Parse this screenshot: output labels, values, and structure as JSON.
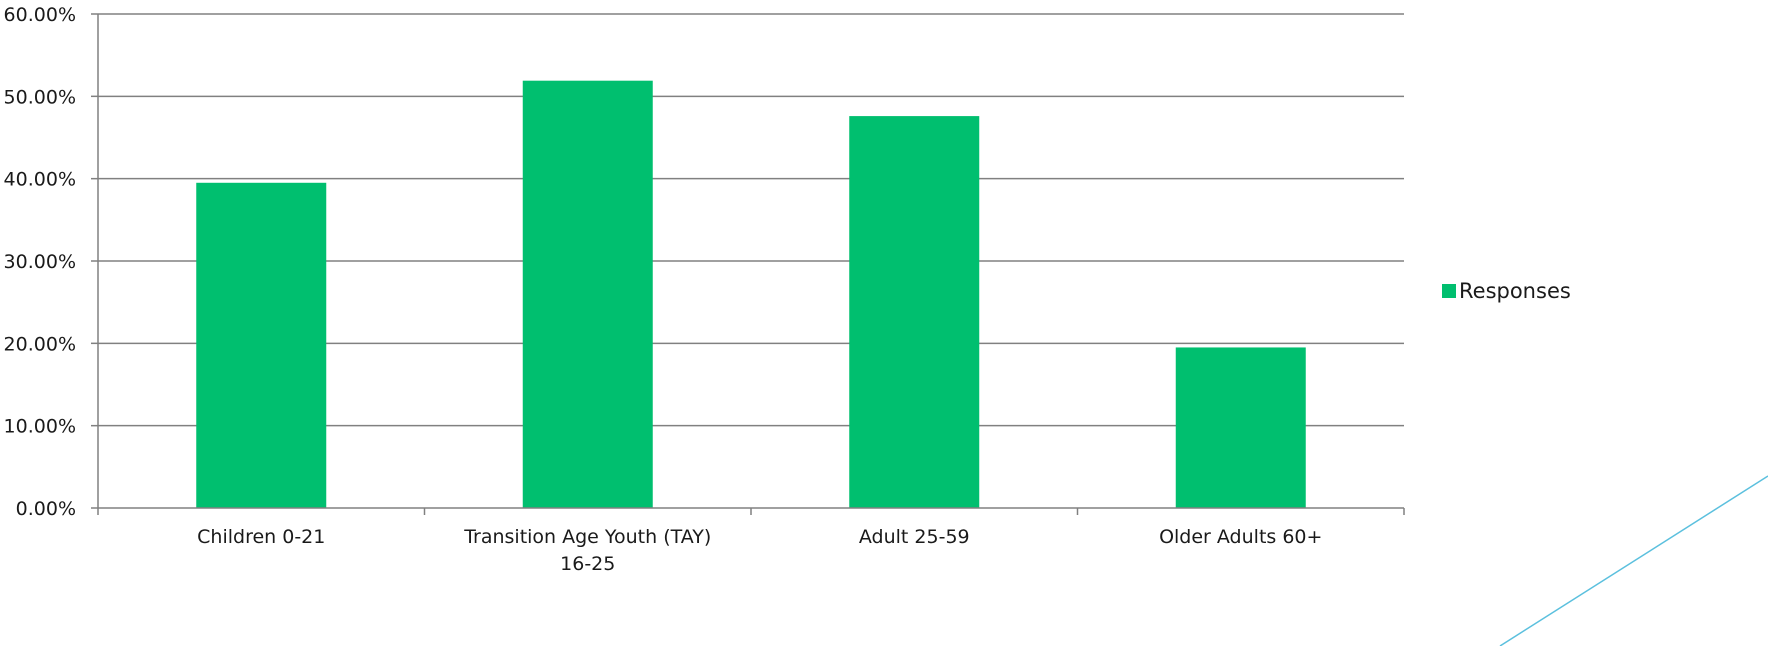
{
  "chart_data": {
    "type": "bar",
    "categories": [
      "Children 0-21",
      "Transition Age Youth (TAY)\n16-25",
      "Adult 25-59",
      "Older Adults 60+"
    ],
    "series": [
      {
        "name": "Responses",
        "values": [
          39.5,
          51.9,
          47.6,
          19.5
        ],
        "color": "#00bf6f"
      }
    ],
    "y_ticks": [
      "0.00%",
      "10.00%",
      "20.00%",
      "30.00%",
      "40.00%",
      "50.00%",
      "60.00%"
    ],
    "ylim": [
      0,
      60
    ],
    "grid": true,
    "legend_position": "right",
    "title": "",
    "xlabel": "",
    "ylabel": ""
  },
  "decoration": {
    "accent_line_color": "#5bc0de"
  }
}
